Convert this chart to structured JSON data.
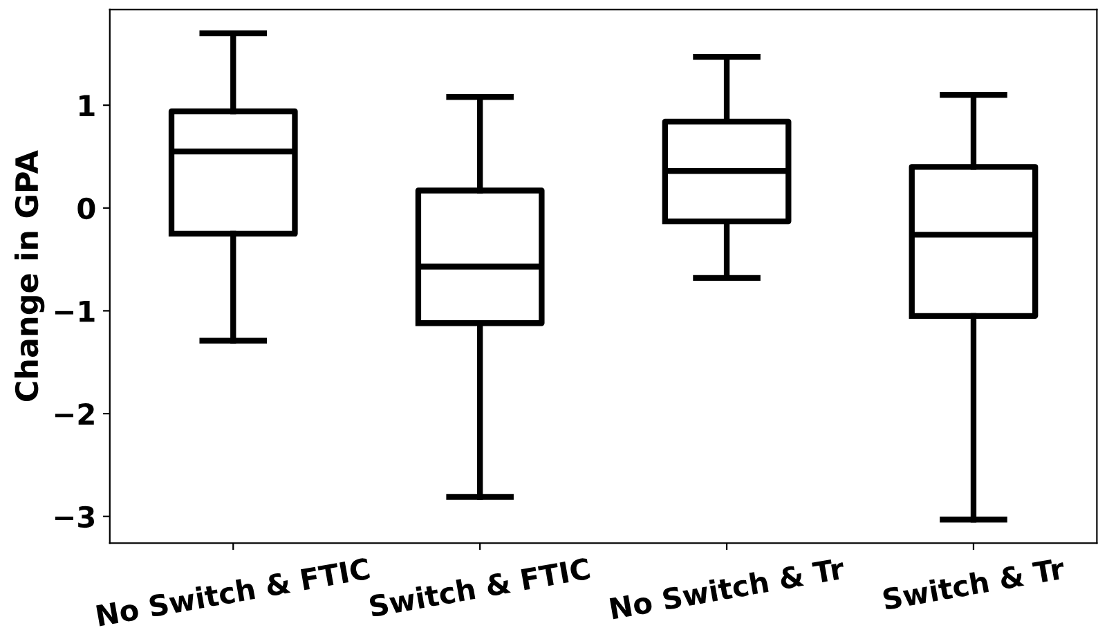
{
  "chart_data": {
    "type": "box",
    "ylabel": "Change in GPA",
    "categories": [
      "No Switch & FTIC",
      "Switch & FTIC",
      "No Switch & Tr",
      "Switch & Tr"
    ],
    "boxes": [
      {
        "low": -1.29,
        "q1": -0.25,
        "median": 0.55,
        "q3": 0.94,
        "high": 1.7
      },
      {
        "low": -2.81,
        "q1": -1.12,
        "median": -0.57,
        "q3": 0.17,
        "high": 1.08
      },
      {
        "low": -0.68,
        "q1": -0.13,
        "median": 0.36,
        "q3": 0.84,
        "high": 1.47
      },
      {
        "low": -3.03,
        "q1": -1.05,
        "median": -0.26,
        "q3": 0.4,
        "high": 1.1
      }
    ],
    "color": "#000000",
    "ylim": [
      -3.26,
      1.93
    ],
    "yticks": [
      {
        "value": -3,
        "label": "−3"
      },
      {
        "value": -2,
        "label": "−2"
      },
      {
        "value": -1,
        "label": "−1"
      },
      0,
      1
    ],
    "grid": false,
    "legend": false
  }
}
